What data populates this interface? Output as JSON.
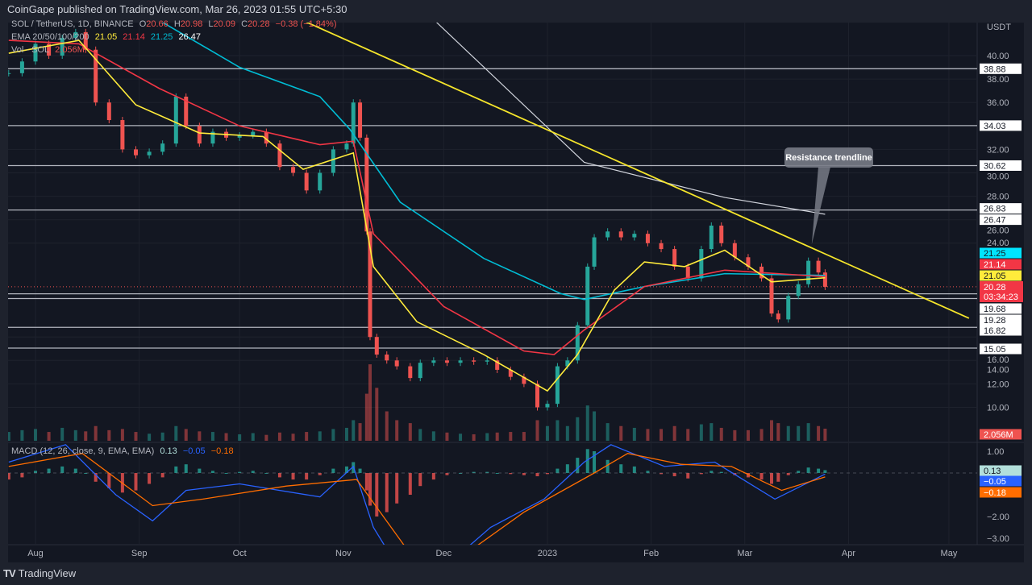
{
  "header": {
    "published": "CoinGape published on TradingView.com, Mar 26, 2023 01:55 UTC+5:30"
  },
  "footer": {
    "brand": "TradingView",
    "logo_glyph": "TV"
  },
  "legend": {
    "symbol": "SOL / TetherUS, 1D, BINANCE",
    "o_label": "O",
    "o": "20.66",
    "h_label": "H",
    "h": "20.98",
    "l_label": "L",
    "l": "20.09",
    "c_label": "C",
    "c": "20.28",
    "change": "−0.38 (−1.84%)",
    "ema_label": "EMA 20/50/100/200",
    "ema20": "21.05",
    "ema50": "21.14",
    "ema100": "21.25",
    "ema200": "26.47",
    "vol_label": "Vol · SOL",
    "vol": "2.056M",
    "macd_label": "MACD (12, 26, close, 9, EMA, EMA)",
    "macd_hist": "0.13",
    "macd": "−0.05",
    "macd_signal": "−0.18"
  },
  "colors": {
    "background": "#131722",
    "up": "#26a69a",
    "down": "#ef5350",
    "ema20": "#ffeb3b",
    "ema50": "#f23645",
    "ema100": "#00bcd4",
    "ema200": "#d1d4dc",
    "trendline": "#f5e52b",
    "macd": "#2962ff",
    "signal": "#ff6d00",
    "hist_up": "#26a69a",
    "hist_down": "#ef5350"
  },
  "chart_data": {
    "type": "candlestick",
    "currency": "USDT",
    "ylim": [
      9,
      44
    ],
    "y_ticks": [
      "40.00",
      "38.00",
      "36.00",
      "32.00",
      "30.00",
      "28.00",
      "26.00",
      "24.00",
      "16.00",
      "14.00",
      "12.00",
      "10.00"
    ],
    "x_ticks": [
      {
        "label": "Aug",
        "date": "2022-08-01"
      },
      {
        "label": "Sep",
        "date": "2022-09-01"
      },
      {
        "label": "Oct",
        "date": "2022-10-01"
      },
      {
        "label": "Nov",
        "date": "2022-11-01"
      },
      {
        "label": "Dec",
        "date": "2022-12-01"
      },
      {
        "label": "2023",
        "date": "2023-01-01"
      },
      {
        "label": "Feb",
        "date": "2023-02-01"
      },
      {
        "label": "Mar",
        "date": "2023-03-01"
      },
      {
        "label": "Apr",
        "date": "2023-04-01"
      },
      {
        "label": "May",
        "date": "2023-05-01"
      }
    ],
    "candles": [
      [
        "2022-07-24",
        38.5,
        1.5,
        -0.3
      ],
      [
        "2022-07-28",
        39.5,
        1.8,
        -0.2
      ],
      [
        "2022-08-01",
        41.0,
        2.0,
        0.1
      ],
      [
        "2022-08-05",
        40.0,
        1.5,
        0.2
      ],
      [
        "2022-08-09",
        41.5,
        2.2,
        0.3
      ],
      [
        "2022-08-13",
        42.0,
        1.8,
        0.2
      ],
      [
        "2022-08-16",
        40.5,
        1.6,
        0.0
      ],
      [
        "2022-08-19",
        36.0,
        2.5,
        -0.4
      ],
      [
        "2022-08-23",
        34.5,
        1.8,
        -0.7
      ],
      [
        "2022-08-27",
        32.0,
        2.0,
        -0.9
      ],
      [
        "2022-08-31",
        31.5,
        1.5,
        -0.8
      ],
      [
        "2022-09-04",
        31.8,
        1.2,
        -0.5
      ],
      [
        "2022-09-08",
        32.5,
        1.4,
        -0.2
      ],
      [
        "2022-09-12",
        36.5,
        2.5,
        0.3
      ],
      [
        "2022-09-15",
        34.0,
        2.0,
        0.4
      ],
      [
        "2022-09-19",
        32.5,
        1.6,
        0.2
      ],
      [
        "2022-09-23",
        33.5,
        1.5,
        0.1
      ],
      [
        "2022-09-27",
        33.0,
        1.3,
        0.0
      ],
      [
        "2022-10-01",
        33.2,
        1.1,
        0.05
      ],
      [
        "2022-10-05",
        33.5,
        1.3,
        0.1
      ],
      [
        "2022-10-09",
        32.5,
        1.0,
        0.0
      ],
      [
        "2022-10-13",
        30.5,
        1.4,
        -0.2
      ],
      [
        "2022-10-17",
        30.0,
        1.2,
        -0.3
      ],
      [
        "2022-10-21",
        28.5,
        1.5,
        -0.3
      ],
      [
        "2022-10-25",
        30.0,
        1.6,
        -0.1
      ],
      [
        "2022-10-29",
        32.0,
        2.0,
        0.2
      ],
      [
        "2022-11-02",
        32.5,
        2.2,
        0.3
      ],
      [
        "2022-11-04",
        36.0,
        3.5,
        0.5
      ],
      [
        "2022-11-06",
        33.0,
        3.0,
        0.2
      ],
      [
        "2022-11-08",
        25.0,
        8.0,
        -0.8
      ],
      [
        "2022-11-09",
        16.0,
        13.0,
        -1.5
      ],
      [
        "2022-11-11",
        14.5,
        9.0,
        -2.0
      ],
      [
        "2022-11-14",
        14.0,
        5.0,
        -1.8
      ],
      [
        "2022-11-17",
        13.5,
        3.5,
        -1.4
      ],
      [
        "2022-11-21",
        12.5,
        3.0,
        -1.0
      ],
      [
        "2022-11-24",
        13.8,
        2.0,
        -0.6
      ],
      [
        "2022-11-28",
        14.0,
        1.6,
        -0.3
      ],
      [
        "2022-12-02",
        13.8,
        1.4,
        -0.1
      ],
      [
        "2022-12-06",
        14.0,
        1.2,
        0.0
      ],
      [
        "2022-12-10",
        13.9,
        1.1,
        0.05
      ],
      [
        "2022-12-14",
        14.0,
        1.3,
        0.05
      ],
      [
        "2022-12-17",
        13.2,
        1.4,
        0.0
      ],
      [
        "2022-12-21",
        12.6,
        1.5,
        -0.05
      ],
      [
        "2022-12-25",
        12.0,
        1.5,
        -0.1
      ],
      [
        "2022-12-29",
        10.0,
        3.5,
        -0.15
      ],
      [
        "2023-01-01",
        10.3,
        2.5,
        -0.05
      ],
      [
        "2023-01-04",
        13.5,
        3.5,
        0.2
      ],
      [
        "2023-01-07",
        14.0,
        2.5,
        0.4
      ],
      [
        "2023-01-10",
        17.0,
        4.0,
        0.7
      ],
      [
        "2023-01-13",
        22.0,
        6.0,
        1.1
      ],
      [
        "2023-01-15",
        24.5,
        5.0,
        1.0
      ],
      [
        "2023-01-19",
        25.0,
        3.0,
        0.6
      ],
      [
        "2023-01-23",
        24.5,
        2.5,
        0.4
      ],
      [
        "2023-01-27",
        24.8,
        2.2,
        0.3
      ],
      [
        "2023-01-31",
        24.0,
        2.0,
        0.1
      ],
      [
        "2023-02-04",
        23.5,
        2.0,
        -0.05
      ],
      [
        "2023-02-08",
        22.0,
        2.5,
        -0.15
      ],
      [
        "2023-02-12",
        21.0,
        2.0,
        -0.25
      ],
      [
        "2023-02-16",
        23.5,
        2.8,
        -0.05
      ],
      [
        "2023-02-19",
        25.5,
        3.0,
        0.1
      ],
      [
        "2023-02-22",
        24.0,
        2.2,
        0.05
      ],
      [
        "2023-02-26",
        22.8,
        1.8,
        -0.1
      ],
      [
        "2023-03-02",
        22.0,
        1.8,
        -0.2
      ],
      [
        "2023-03-06",
        21.0,
        2.0,
        -0.3
      ],
      [
        "2023-03-09",
        18.0,
        3.5,
        -0.5
      ],
      [
        "2023-03-11",
        17.5,
        3.0,
        -0.4
      ],
      [
        "2023-03-14",
        19.5,
        2.5,
        -0.1
      ],
      [
        "2023-03-17",
        20.5,
        2.5,
        0.1
      ],
      [
        "2023-03-20",
        22.5,
        3.0,
        0.25
      ],
      [
        "2023-03-23",
        21.5,
        2.5,
        0.2
      ],
      [
        "2023-03-25",
        20.28,
        2.056,
        0.13
      ]
    ],
    "candle_fields": [
      "date",
      "close",
      "volume_millions",
      "macd_histogram"
    ],
    "ema20": [
      [
        "2022-07-24",
        40.2
      ],
      [
        "2022-08-14",
        41.3
      ],
      [
        "2022-08-31",
        35.8
      ],
      [
        "2022-09-19",
        33.4
      ],
      [
        "2022-10-08",
        33.1
      ],
      [
        "2022-10-20",
        30.3
      ],
      [
        "2022-11-04",
        31.7
      ],
      [
        "2022-11-10",
        22.0
      ],
      [
        "2022-11-23",
        17.3
      ],
      [
        "2022-12-13",
        14.5
      ],
      [
        "2023-01-01",
        11.4
      ],
      [
        "2023-01-10",
        14.5
      ],
      [
        "2023-01-21",
        20.0
      ],
      [
        "2023-01-30",
        22.4
      ],
      [
        "2023-02-11",
        22.0
      ],
      [
        "2023-02-23",
        23.4
      ],
      [
        "2023-03-09",
        20.7
      ],
      [
        "2023-03-25",
        21.05
      ]
    ],
    "ema50": [
      [
        "2022-07-24",
        41.3
      ],
      [
        "2022-08-14",
        41.0
      ],
      [
        "2022-09-07",
        37.2
      ],
      [
        "2022-10-01",
        34.0
      ],
      [
        "2022-10-25",
        32.4
      ],
      [
        "2022-11-04",
        32.7
      ],
      [
        "2022-11-10",
        24.8
      ],
      [
        "2022-12-01",
        18.6
      ],
      [
        "2022-12-25",
        14.8
      ],
      [
        "2023-01-03",
        14.5
      ],
      [
        "2023-01-12",
        16.6
      ],
      [
        "2023-01-30",
        20.3
      ],
      [
        "2023-02-23",
        21.7
      ],
      [
        "2023-03-25",
        21.14
      ]
    ],
    "ema100": [
      [
        "2022-09-07",
        43.0
      ],
      [
        "2022-10-01",
        39.0
      ],
      [
        "2022-10-25",
        36.5
      ],
      [
        "2022-11-03",
        33.7
      ],
      [
        "2022-11-18",
        27.5
      ],
      [
        "2022-12-13",
        22.7
      ],
      [
        "2023-01-05",
        19.7
      ],
      [
        "2023-01-12",
        19.2
      ],
      [
        "2023-01-30",
        20.3
      ],
      [
        "2023-02-23",
        21.4
      ],
      [
        "2023-03-25",
        21.25
      ]
    ],
    "ema200": [
      [
        "2022-11-22",
        44.7
      ],
      [
        "2023-01-12",
        30.9
      ],
      [
        "2023-02-23",
        27.9
      ],
      [
        "2023-03-25",
        26.47
      ]
    ],
    "trendline": [
      [
        "2022-10-12",
        44.0
      ],
      [
        "2023-05-07",
        17.6
      ]
    ],
    "levels": [
      "38.88",
      "34.03",
      "30.62",
      "26.83",
      "19.68",
      "19.28",
      "16.82",
      "15.05"
    ],
    "annotation": {
      "text": "Resistance trendline",
      "points_to": [
        "2023-03-21",
        23.9
      ]
    },
    "price_labels": {
      "ema100": "21.25",
      "ema50": "21.14",
      "ema20": "21.05",
      "last": "20.28",
      "countdown": "03:34:23",
      "volume": "2.056M",
      "ema200": "26.47"
    },
    "macd_ticks": [
      "1.00",
      "−2.00",
      "−3.00"
    ],
    "macd_labels": {
      "hist": "0.13",
      "macd": "−0.05",
      "signal": "−0.18"
    },
    "macd_line": [
      [
        "2022-07-24",
        0.5
      ],
      [
        "2022-08-10",
        1.3
      ],
      [
        "2022-08-25",
        -1.0
      ],
      [
        "2022-09-05",
        -2.2
      ],
      [
        "2022-09-15",
        -0.8
      ],
      [
        "2022-10-01",
        -0.5
      ],
      [
        "2022-10-25",
        -1.1
      ],
      [
        "2022-11-04",
        0.3
      ],
      [
        "2022-11-10",
        -2.5
      ],
      [
        "2022-11-16",
        -4.0
      ],
      [
        "2022-11-30",
        -4.5
      ],
      [
        "2022-12-15",
        -2.5
      ],
      [
        "2022-12-31",
        -1.2
      ],
      [
        "2023-01-12",
        0.5
      ],
      [
        "2023-01-20",
        1.3
      ],
      [
        "2023-02-05",
        0.3
      ],
      [
        "2023-02-20",
        0.5
      ],
      [
        "2023-03-10",
        -1.2
      ],
      [
        "2023-03-25",
        -0.05
      ]
    ],
    "signal_line": [
      [
        "2022-07-24",
        0.3
      ],
      [
        "2022-08-15",
        0.9
      ],
      [
        "2022-09-05",
        -1.5
      ],
      [
        "2022-09-20",
        -1.2
      ],
      [
        "2022-10-15",
        -0.6
      ],
      [
        "2022-11-05",
        -0.3
      ],
      [
        "2022-11-20",
        -3.5
      ],
      [
        "2022-12-05",
        -4.0
      ],
      [
        "2022-12-25",
        -1.8
      ],
      [
        "2023-01-15",
        0.0
      ],
      [
        "2023-01-25",
        0.9
      ],
      [
        "2023-02-10",
        0.4
      ],
      [
        "2023-02-25",
        0.3
      ],
      [
        "2023-03-12",
        -0.8
      ],
      [
        "2023-03-25",
        -0.18
      ]
    ]
  }
}
